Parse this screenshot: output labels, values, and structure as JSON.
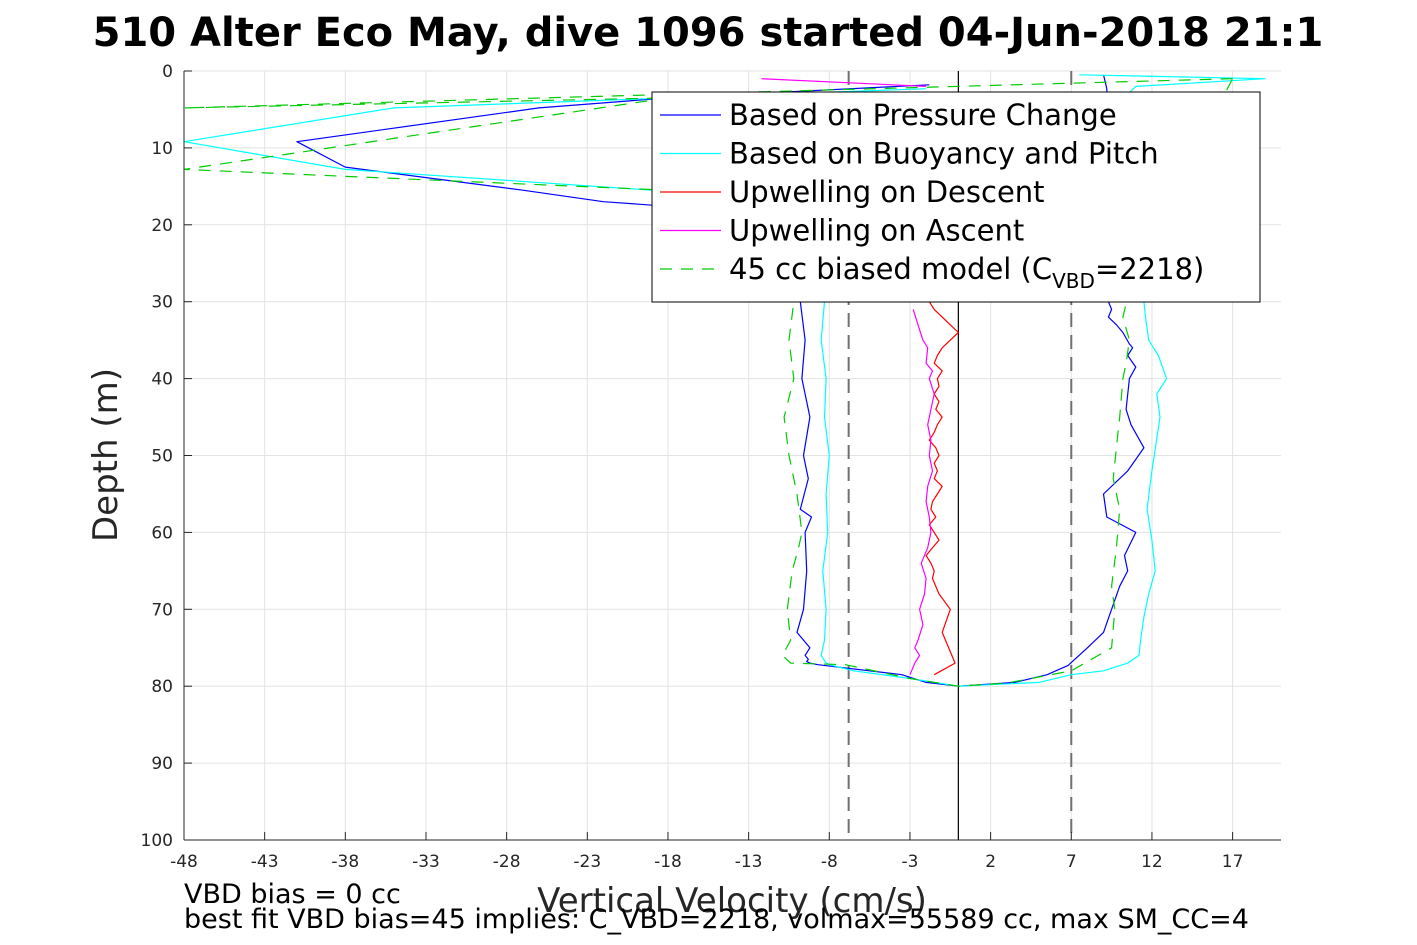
{
  "figure": {
    "title": "510 Alter Eco May, dive 1096 started 04-Jun-2018 21:1",
    "footer_lines": [
      "VBD bias = 0 cc",
      "best fit VBD bias=45 implies: C_VBD=2218, volmax=55589 cc, max SM_CC=4"
    ]
  },
  "chart_data": {
    "type": "line",
    "title": "510 Alter Eco May, dive 1096 started 04-Jun-2018 21:1",
    "xlabel": "Vertical Velocity (cm/s)",
    "ylabel": "Depth (m)",
    "xlim": [
      -48,
      20
    ],
    "ylim": [
      0,
      100
    ],
    "y_reversed": true,
    "grid": true,
    "xticks": [
      -48,
      -43,
      -38,
      -33,
      -28,
      -23,
      -18,
      -13,
      -8,
      -3,
      2,
      7,
      12,
      17
    ],
    "yticks": [
      0,
      10,
      20,
      30,
      40,
      50,
      60,
      70,
      80,
      90,
      100
    ],
    "legend_position": "top-right",
    "legend": [
      {
        "label": "Based on Pressure Change",
        "sub": "",
        "suffix": "",
        "color": "#0000ff",
        "style": "solid"
      },
      {
        "label": "Based on Buoyancy and Pitch",
        "sub": "",
        "suffix": "",
        "color": "#00ffff",
        "style": "solid"
      },
      {
        "label": "Upwelling on Descent",
        "sub": "",
        "suffix": "",
        "color": "#ff0000",
        "style": "solid"
      },
      {
        "label": "Upwelling on Ascent",
        "sub": "",
        "suffix": "",
        "color": "#ff00ff",
        "style": "solid"
      },
      {
        "label": "45 cc biased model (C",
        "sub": "VBD",
        "suffix": "=2218)",
        "color": "#00cc00",
        "style": "dashed"
      }
    ],
    "reference_lines": [
      {
        "x": 0,
        "color": "#000000",
        "style": "solid"
      },
      {
        "x": -6.8,
        "color": "#707070",
        "style": "dashed"
      },
      {
        "x": 7,
        "color": "#707070",
        "style": "dashed"
      }
    ],
    "series": [
      {
        "name": "Based on Pressure Change",
        "color": "#0000ff",
        "dash": "",
        "x": [
          -1.8,
          -18,
          -26,
          -41,
          -38,
          -27,
          -22,
          -18,
          -11,
          -9.8,
          -9.5,
          -9.7,
          -9.2,
          -9.6,
          -9.3,
          -9.8,
          -9.1,
          -9.5,
          -9.4,
          -9.6,
          -10,
          -9.2,
          -9.5,
          -9.3,
          -9.4,
          -9.2,
          -8.7,
          -3.5,
          -2,
          0
        ],
        "y": [
          1.8,
          3.5,
          4.8,
          9.2,
          12.5,
          15.5,
          17,
          17.6,
          25,
          30,
          35,
          40,
          45,
          50,
          53,
          57,
          58,
          60,
          65,
          70,
          73,
          75,
          76,
          76.5,
          76.8,
          77,
          77.2,
          78.5,
          79.5,
          80
        ]
      },
      {
        "name": "Based on Buoyancy and Pitch",
        "color": "#00ffff",
        "dash": "",
        "x": [
          -2,
          -35,
          -48,
          -38,
          -19,
          -8,
          -8.3,
          -8.5,
          -8.2,
          -8.3,
          -8,
          -8.2,
          -8.1,
          -8.4,
          -8.2,
          -8.3,
          -8.5,
          -8.2,
          -7.8,
          -6.5,
          -3,
          0
        ],
        "y": [
          2.3,
          4.8,
          9.2,
          12.8,
          15.5,
          25,
          30,
          35,
          40,
          45,
          50,
          55,
          60,
          65,
          70,
          74,
          76,
          77,
          77.3,
          78,
          79,
          80
        ]
      },
      {
        "name": "Based on Pressure Change",
        "color": "#0000ff",
        "dash": "",
        "x": [
          0,
          3.5,
          5.5,
          6.8,
          8,
          9,
          9.5,
          10,
          10.5,
          10.3,
          11,
          9.2,
          9,
          10.5,
          11.5,
          10.7,
          10.4,
          10.6,
          11,
          10.5,
          10.8,
          10.6,
          10.2,
          9.8,
          9.3,
          9.5,
          9.3,
          9.5,
          9.2,
          9
        ],
        "y": [
          80,
          79.5,
          78.5,
          77.3,
          75,
          73,
          70,
          67,
          65,
          63,
          60,
          58,
          55,
          52,
          49,
          46,
          44,
          40,
          38.5,
          37,
          36,
          35.5,
          34,
          33,
          32,
          31,
          30,
          25,
          2.3,
          0.5
        ]
      },
      {
        "name": "Based on Buoyancy and Pitch",
        "color": "#00ffff",
        "dash": "",
        "x": [
          0,
          5,
          7,
          9,
          10.5,
          11.2,
          11.3,
          11.5,
          11.8,
          12.2,
          12,
          11.7,
          12,
          12.5,
          12.3,
          12.9,
          12.4,
          11.8,
          11.6,
          11.5,
          11.5,
          11.2,
          11,
          10.5,
          10,
          11,
          19,
          7.5
        ],
        "y": [
          80,
          79.5,
          78.5,
          78,
          77,
          76,
          74,
          71,
          68,
          65,
          61,
          57,
          52,
          45,
          42,
          40,
          37,
          35,
          32,
          30,
          28,
          25,
          22,
          10,
          4,
          2,
          1,
          0.5
        ]
      },
      {
        "name": "Upwelling on Descent",
        "color": "#ff0000",
        "dash": "",
        "x": [
          -1.8,
          -1.5,
          -1,
          -0.5,
          0,
          -0.5,
          -1,
          -1.3,
          -1.5,
          -1,
          -1.3,
          -1.2,
          -1.5,
          -1.2,
          -1.4,
          -1,
          -1.3,
          -1.5,
          -1.8,
          -1.4,
          -1.2,
          -1.5,
          -1.3,
          -1.5,
          -1,
          -1.3,
          -1.6,
          -1.7,
          -1.4,
          -1.8,
          -1.5,
          -1.2,
          -1.6,
          -2,
          -1.7,
          -1.5,
          -1.6,
          -1.2,
          -0.5,
          -1,
          -0.2,
          -1.5
        ],
        "y": [
          30,
          31,
          32,
          33,
          34,
          35,
          36,
          37,
          38,
          39,
          40,
          41,
          42,
          43,
          44,
          45,
          46,
          47,
          48,
          49,
          50,
          51,
          52,
          53,
          54,
          55,
          56,
          57,
          58,
          59,
          60,
          61,
          62,
          63,
          64,
          65,
          66,
          68,
          70,
          73,
          77,
          78.5
        ]
      },
      {
        "name": "Upwelling on Ascent",
        "color": "#ff00ff",
        "dash": "",
        "x": [
          -2.8,
          -2.5,
          -2.2,
          -1.9,
          -2,
          -1.6,
          -1.8,
          -1.5,
          -1.7,
          -1.9,
          -1.7,
          -1.8,
          -1.6,
          -1.9,
          -2,
          -1.8,
          -1.7,
          -1.9,
          -2.3,
          -2,
          -2.1,
          -2.4,
          -2.2,
          -2.5,
          -2.7,
          -2.4,
          -2.7,
          -3
        ],
        "y": [
          31,
          33,
          35,
          36,
          38,
          39,
          40,
          42,
          44,
          46,
          48,
          50,
          52,
          54,
          56,
          58,
          60,
          62,
          64,
          66,
          68,
          70,
          72,
          74,
          75,
          76,
          77,
          78.5
        ]
      },
      {
        "name": "Upwelling on Ascent",
        "color": "#ff00ff",
        "dash": "",
        "x": [
          -12.2,
          -2
        ],
        "y": [
          1,
          2
        ]
      },
      {
        "name": "45 cc biased model (CVBD=2218)",
        "color": "#00cc00",
        "dash": "12,9",
        "x": [
          17,
          -48,
          -18,
          -48,
          -18,
          -8.5,
          -10.2,
          -10.5,
          -10.2,
          -10.8,
          -10.5,
          -10,
          -9.7,
          -9.9,
          -10.3,
          -10.6,
          -10.4,
          -10.9,
          -10.4,
          -7,
          -3,
          0,
          3,
          7,
          9.5,
          9.7,
          9.5,
          9.8,
          10,
          9.6,
          9.8,
          10,
          10.2,
          10.4,
          10.6,
          10.2,
          11,
          17
        ],
        "y": [
          1,
          4.8,
          3.5,
          12.8,
          15.5,
          25,
          30,
          35,
          40,
          45,
          50,
          55,
          60,
          62,
          65,
          70,
          74,
          76,
          77,
          77.2,
          79,
          80,
          79.6,
          78,
          75,
          70,
          67,
          62,
          57,
          53,
          49,
          45,
          40,
          38,
          35,
          32,
          25,
          1
        ]
      }
    ]
  }
}
